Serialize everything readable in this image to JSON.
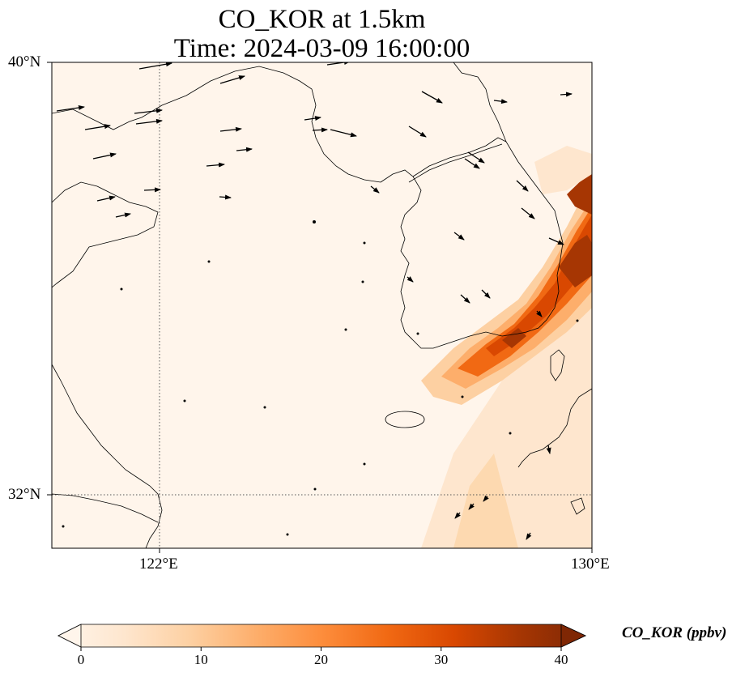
{
  "title": {
    "line1": "CO_KOR at 1.5km",
    "line2": "Time: 2024-03-09 16:00:00"
  },
  "map": {
    "lon_range": [
      118,
      130
    ],
    "lat_range": [
      30.8,
      40
    ],
    "lat_ticks": [
      {
        "value": 40,
        "label": "40°N"
      },
      {
        "value": 32,
        "label": "32°N"
      }
    ],
    "lon_ticks": [
      {
        "value": 122,
        "label": "122°E"
      },
      {
        "value": 130,
        "label": "130°E"
      }
    ],
    "gridlines": {
      "lon": [
        122
      ],
      "lat": [
        32
      ]
    },
    "background_color": "#fff5eb"
  },
  "colorbar": {
    "label": "CO_KOR (ppbv)",
    "min": 0,
    "max": 40,
    "ticks": [
      {
        "value": 0,
        "label": "0"
      },
      {
        "value": 10,
        "label": "10"
      },
      {
        "value": 20,
        "label": "20"
      },
      {
        "value": 30,
        "label": "30"
      },
      {
        "value": 40,
        "label": "40"
      }
    ],
    "extend": "both",
    "colors": [
      "#fff5eb",
      "#fee6ce",
      "#fdd0a2",
      "#fdae6b",
      "#fd8d3c",
      "#f16913",
      "#d94801",
      "#a63603",
      "#7f2704"
    ]
  }
}
